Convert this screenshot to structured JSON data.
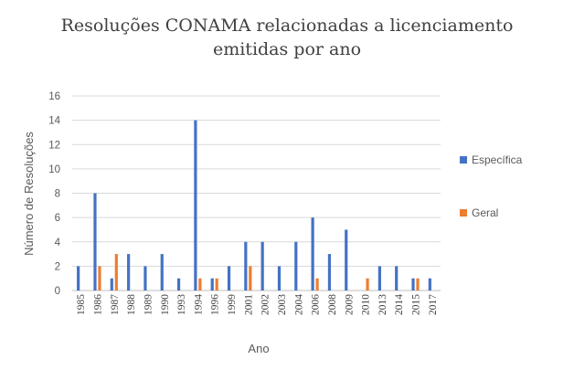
{
  "chart_data": {
    "type": "bar",
    "title_line1": "Resoluções CONAMA relacionadas a licenciamento",
    "title_line2": "emitidas por ano",
    "xlabel": "Ano",
    "ylabel": "Número de Resoluções",
    "ylim": [
      0,
      16
    ],
    "yticks": [
      0,
      2,
      4,
      6,
      8,
      10,
      12,
      14,
      16
    ],
    "grid": true,
    "legend_position": "right",
    "categories": [
      "1985",
      "1986",
      "1987",
      "1988",
      "1989",
      "1990",
      "1993",
      "1994",
      "1996",
      "1999",
      "2001",
      "2002",
      "2003",
      "2004",
      "2006",
      "2008",
      "2009",
      "2010",
      "2013",
      "2014",
      "2015",
      "2017"
    ],
    "series": [
      {
        "name": "Específica",
        "color": "#4472C4",
        "values": [
          2,
          8,
          1,
          3,
          2,
          3,
          1,
          14,
          1,
          2,
          4,
          4,
          2,
          4,
          6,
          3,
          5,
          0,
          2,
          2,
          1,
          1
        ]
      },
      {
        "name": "Geral",
        "color": "#ED7D31",
        "values": [
          0,
          2,
          3,
          0,
          0,
          0,
          0,
          1,
          1,
          0,
          2,
          0,
          0,
          0,
          1,
          0,
          0,
          1,
          0,
          0,
          1,
          0
        ]
      }
    ]
  }
}
